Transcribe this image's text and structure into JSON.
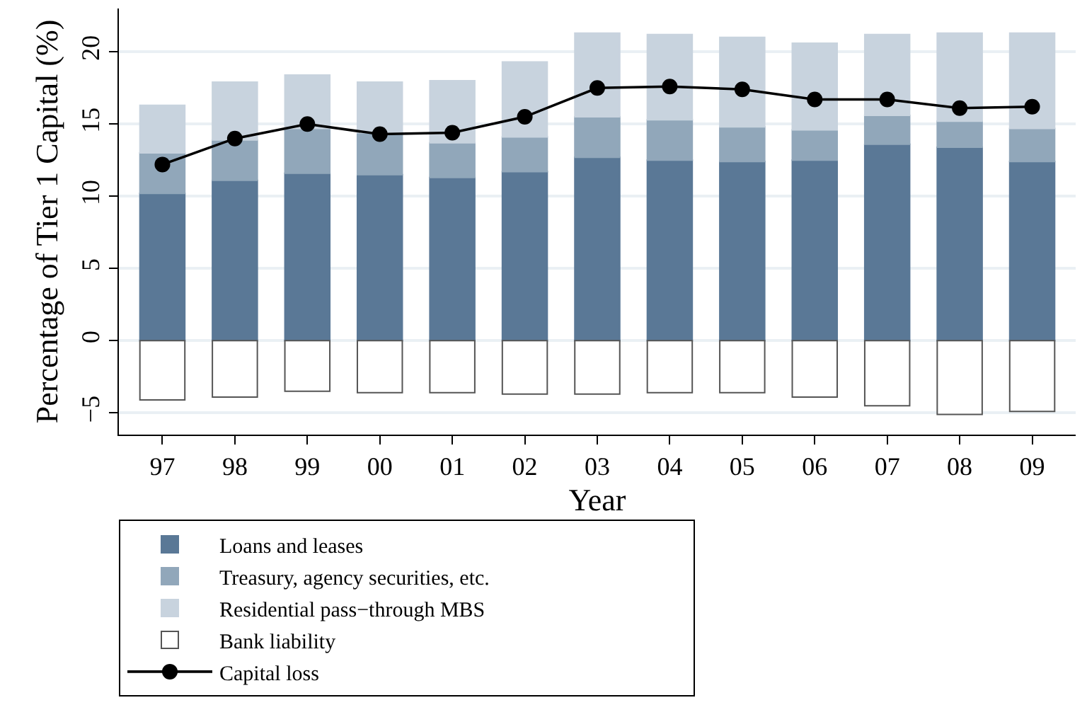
{
  "chart_data": {
    "type": "bar",
    "stacked": true,
    "xlabel": "Year",
    "ylabel": "Percentage of Tier 1 Capital (%)",
    "categories": [
      "97",
      "98",
      "99",
      "00",
      "01",
      "02",
      "03",
      "04",
      "05",
      "06",
      "07",
      "08",
      "09"
    ],
    "series": [
      {
        "name": "Loans and leases",
        "color": "#5a7896",
        "values": [
          10.2,
          11.1,
          11.6,
          11.5,
          11.3,
          11.7,
          12.7,
          12.5,
          12.4,
          12.5,
          13.6,
          13.4,
          12.4
        ]
      },
      {
        "name": "Treasury, agency securities, etc.",
        "color": "#91a7ba",
        "values": [
          2.8,
          2.8,
          3.1,
          2.9,
          2.4,
          2.4,
          2.8,
          2.8,
          2.4,
          2.1,
          2.0,
          1.8,
          2.3
        ]
      },
      {
        "name": "Residential pass−through MBS",
        "color": "#c8d3de",
        "values": [
          3.3,
          4.0,
          3.7,
          3.5,
          4.3,
          5.2,
          5.8,
          5.9,
          6.2,
          6.0,
          5.6,
          6.1,
          6.6
        ]
      },
      {
        "name": "Bank liability",
        "color": "#ffffff",
        "values": [
          -4.1,
          -3.9,
          -3.5,
          -3.6,
          -3.6,
          -3.7,
          -3.7,
          -3.6,
          -3.6,
          -3.9,
          -4.5,
          -5.1,
          -4.9
        ]
      },
      {
        "name": "Capital loss",
        "type": "line",
        "color": "#000000",
        "marker": "circle",
        "values": [
          12.2,
          14.0,
          15.0,
          14.3,
          14.4,
          15.5,
          17.5,
          17.6,
          17.4,
          16.7,
          16.7,
          16.1,
          16.2
        ]
      }
    ],
    "ylim": [
      -6.5,
      23
    ],
    "yticks": [
      {
        "value": -5,
        "label": "−5"
      },
      0,
      5,
      10,
      15,
      20
    ],
    "grid": "y",
    "legend": "bottom"
  }
}
